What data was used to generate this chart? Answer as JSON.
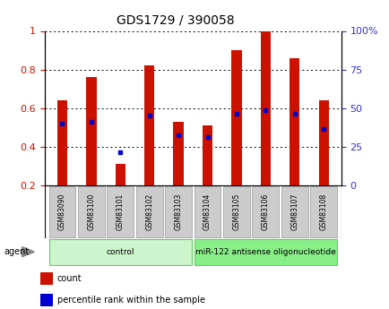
{
  "title": "GDS1729 / 390058",
  "samples": [
    "GSM83090",
    "GSM83100",
    "GSM83101",
    "GSM83102",
    "GSM83103",
    "GSM83104",
    "GSM83105",
    "GSM83106",
    "GSM83107",
    "GSM83108"
  ],
  "bar_heights": [
    0.64,
    0.76,
    0.31,
    0.82,
    0.53,
    0.51,
    0.9,
    1.0,
    0.86,
    0.64
  ],
  "blue_marker_y": [
    0.52,
    0.53,
    0.37,
    0.56,
    0.46,
    0.45,
    0.57,
    0.59,
    0.57,
    0.49
  ],
  "bar_color": "#cc1100",
  "marker_color": "#0000cc",
  "bar_bottom": 0.2,
  "ylim_left": [
    0.2,
    1.0
  ],
  "ylim_right": [
    0,
    100
  ],
  "yticks_left": [
    0.2,
    0.4,
    0.6,
    0.8,
    1.0
  ],
  "yticks_right": [
    0,
    25,
    50,
    75,
    100
  ],
  "yticklabels_left": [
    "0.2",
    "0.4",
    "0.6",
    "0.8",
    "1"
  ],
  "yticklabels_right": [
    "0",
    "25",
    "50",
    "75",
    "100%"
  ],
  "groups": [
    {
      "label": "control",
      "indices": [
        0,
        1,
        2,
        3,
        4
      ],
      "color": "#ccf5cc"
    },
    {
      "label": "miR-122 antisense oligonucleotide",
      "indices": [
        5,
        6,
        7,
        8,
        9
      ],
      "color": "#88ee88"
    }
  ],
  "agent_label": "agent",
  "legend_items": [
    {
      "label": "count",
      "color": "#cc1100"
    },
    {
      "label": "percentile rank within the sample",
      "color": "#0000cc"
    }
  ],
  "tick_label_color_left": "#cc1100",
  "tick_label_color_right": "#3333cc",
  "bar_width": 0.35,
  "xlabel_bg": "#cccccc"
}
